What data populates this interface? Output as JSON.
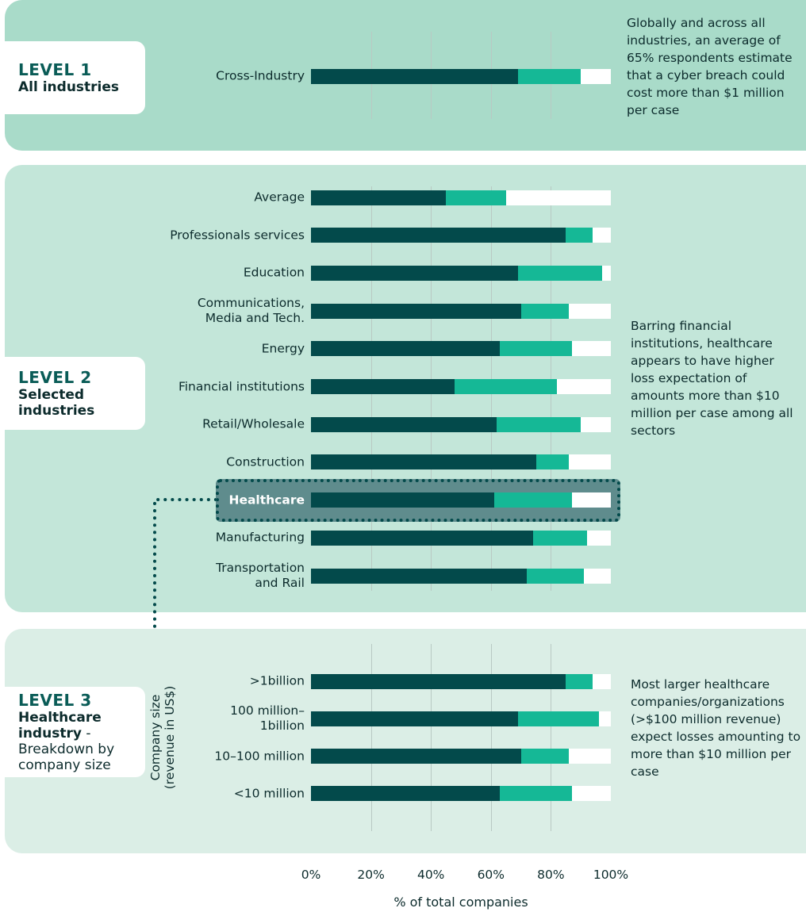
{
  "chart_data": [
    {
      "type": "bar",
      "orientation": "horizontal",
      "stacked": true,
      "level": "LEVEL 1",
      "heading": "All industries",
      "note": "Globally and across all industries, an average of 65% respondents estimate that a cyber breach could cost more than $1 million per case",
      "categories": [
        "Cross-Industry"
      ],
      "series": [
        {
          "color": "#034a4b",
          "values": [
            69
          ]
        },
        {
          "color": "#15b896",
          "values": [
            21
          ]
        },
        {
          "color": "#ffffff",
          "values": [
            10
          ]
        }
      ]
    },
    {
      "type": "bar",
      "orientation": "horizontal",
      "stacked": true,
      "level": "LEVEL 2",
      "heading": "Selected industries",
      "note": "Barring financial institutions, healthcare appears to have higher loss expectation of amounts more than $10 million per case among all sectors",
      "categories": [
        "Average",
        "Professionals services",
        "Education",
        "Communications,\nMedia and Tech.",
        "Energy",
        "Financial institutions",
        "Retail/Wholesale",
        "Construction",
        "Healthcare",
        "Manufacturing",
        "Transportation\nand Rail"
      ],
      "highlight": 8,
      "series": [
        {
          "color": "#034a4b",
          "values": [
            45,
            85,
            69,
            70,
            63,
            48,
            62,
            75,
            61,
            74,
            72
          ]
        },
        {
          "color": "#15b896",
          "values": [
            20,
            9,
            28,
            16,
            24,
            34,
            28,
            11,
            26,
            18,
            19
          ]
        },
        {
          "color": "#ffffff",
          "values": [
            35,
            6,
            3,
            14,
            13,
            18,
            10,
            14,
            13,
            8,
            9
          ]
        }
      ]
    },
    {
      "type": "bar",
      "orientation": "horizontal",
      "stacked": true,
      "level": "LEVEL 3",
      "heading": "Healthcare industry",
      "heading_rest": " - Breakdown by company size",
      "note": "Most larger healthcare companies/organizations (>$100 million revenue) expect losses amounting to more than $10 million per case",
      "ylabel": [
        "Company size",
        "(revenue in US$)"
      ],
      "categories": [
        ">1billion",
        "100 million–\n1billion",
        "10–100 million",
        "<10 million"
      ],
      "series": [
        {
          "color": "#034a4b",
          "values": [
            85,
            69,
            70,
            63
          ]
        },
        {
          "color": "#15b896",
          "values": [
            9,
            27,
            16,
            24
          ]
        },
        {
          "color": "#ffffff",
          "values": [
            6,
            4,
            14,
            13
          ]
        }
      ],
      "xlabel": "% of total companies",
      "xlim": [
        0,
        100
      ],
      "xticks": [
        {
          "value": 0,
          "label": "0%"
        },
        {
          "value": 20,
          "label": "20%"
        },
        {
          "value": 40,
          "label": "40%"
        },
        {
          "value": 60,
          "label": "60%"
        },
        {
          "value": 80,
          "label": "80%"
        },
        {
          "value": 100,
          "label": "100%"
        }
      ]
    }
  ]
}
